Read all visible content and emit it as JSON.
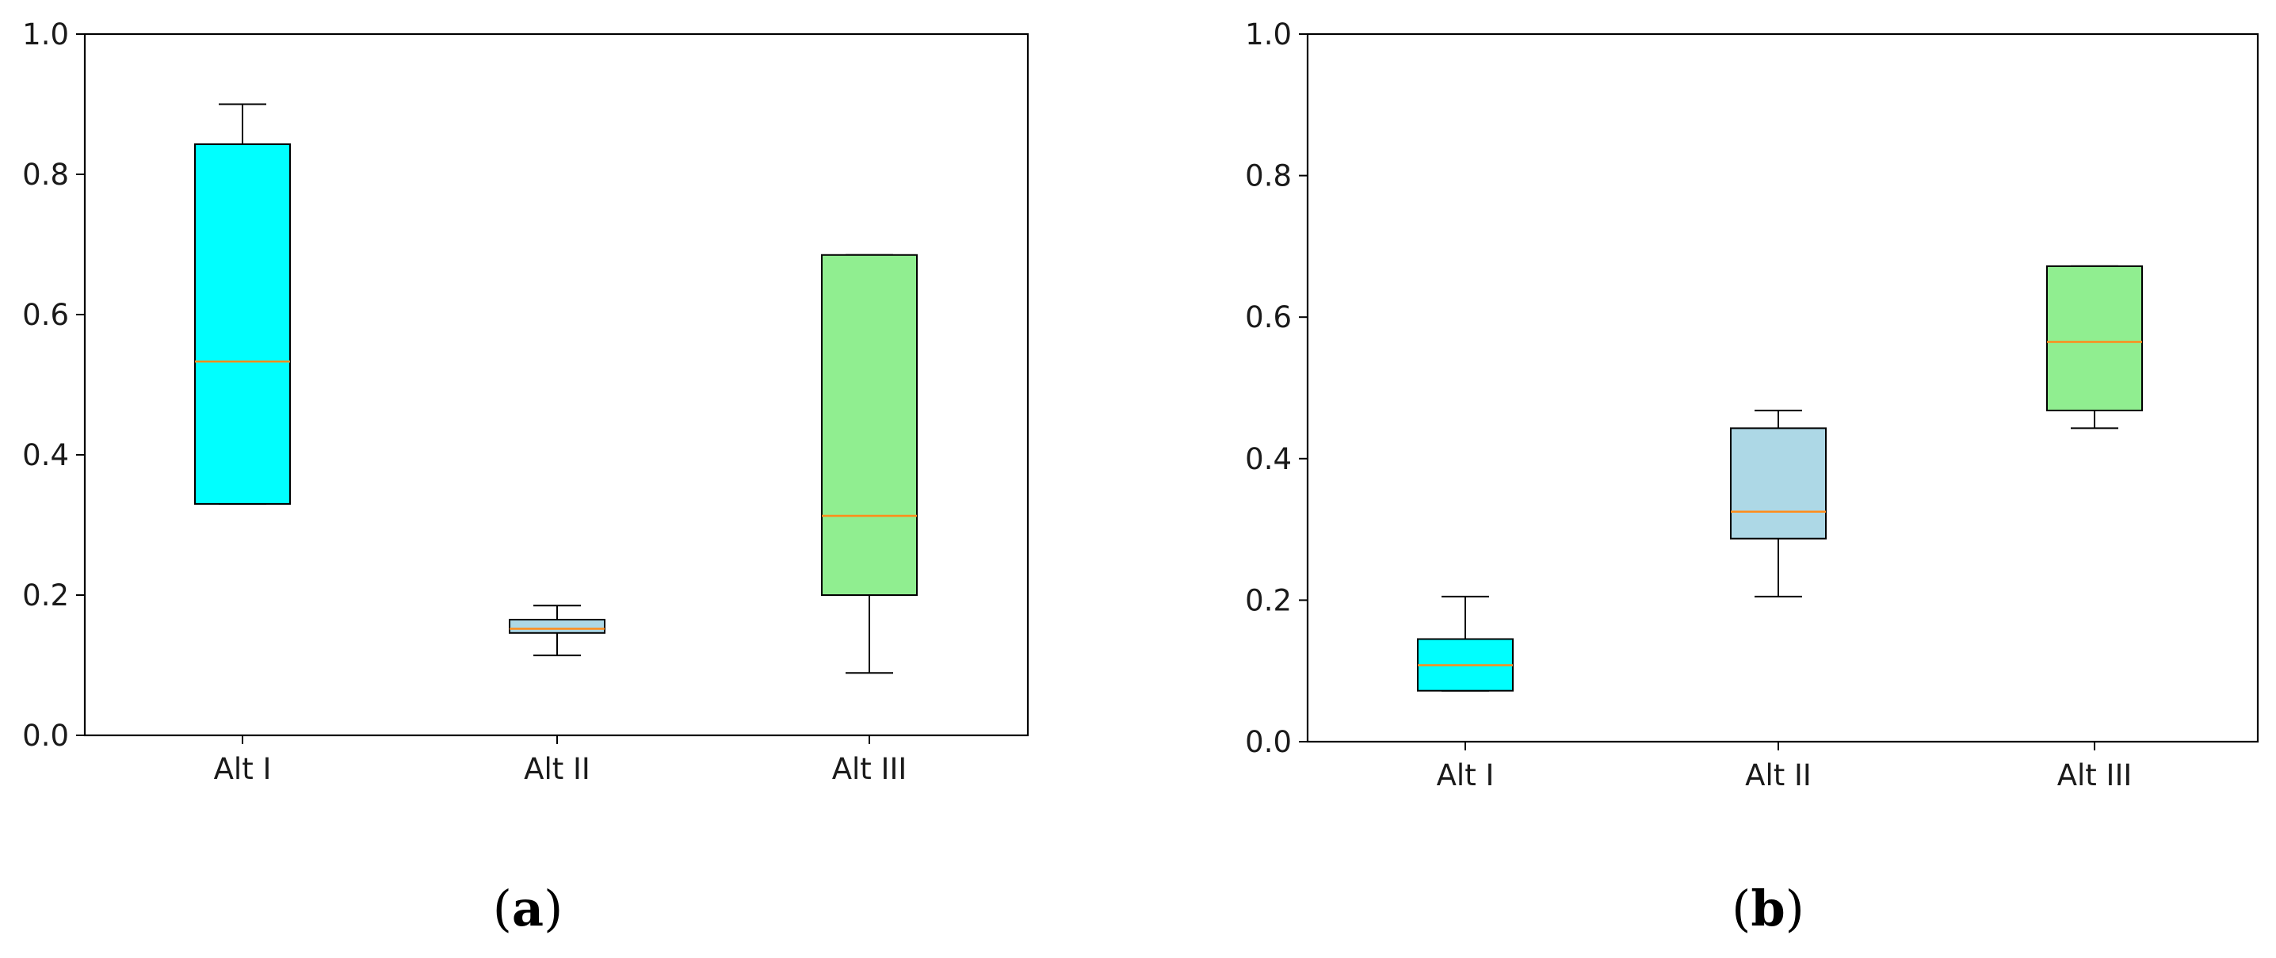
{
  "chart_data": [
    {
      "type": "box",
      "panel_label": {
        "open": "(",
        "letter": "a",
        "close": ")"
      },
      "categories": [
        "Alt I",
        "Alt II",
        "Alt III"
      ],
      "ylim": [
        0,
        1.0
      ],
      "yticks": [
        "0.0",
        "0.2",
        "0.4",
        "0.6",
        "0.8",
        "1.0"
      ],
      "yticks_values": [
        0,
        0.2,
        0.4,
        0.6,
        0.8,
        1.0
      ],
      "boxes": [
        {
          "whisker_low": 0.33,
          "q1": 0.33,
          "median": 0.533,
          "q3": 0.843,
          "whisker_high": 0.9,
          "color": "#00ffff"
        },
        {
          "whisker_low": 0.114,
          "q1": 0.146,
          "median": 0.152,
          "q3": 0.165,
          "whisker_high": 0.185,
          "color": "#add8e6"
        },
        {
          "whisker_low": 0.089,
          "q1": 0.2,
          "median": 0.313,
          "q3": 0.685,
          "whisker_high": 0.685,
          "color": "#90ee90"
        }
      ],
      "median_color": "#ff8c1a",
      "grid": false,
      "xlabel": "",
      "ylabel": ""
    },
    {
      "type": "box",
      "panel_label": {
        "open": "(",
        "letter": "b",
        "close": ")"
      },
      "categories": [
        "Alt I",
        "Alt II",
        "Alt III"
      ],
      "ylim": [
        0,
        1.0
      ],
      "yticks": [
        "0.0",
        "0.2",
        "0.4",
        "0.6",
        "0.8",
        "1.0"
      ],
      "yticks_values": [
        0,
        0.2,
        0.4,
        0.6,
        0.8,
        1.0
      ],
      "boxes": [
        {
          "whisker_low": 0.072,
          "q1": 0.072,
          "median": 0.108,
          "q3": 0.145,
          "whisker_high": 0.205,
          "color": "#00ffff"
        },
        {
          "whisker_low": 0.205,
          "q1": 0.287,
          "median": 0.325,
          "q3": 0.443,
          "whisker_high": 0.468,
          "color": "#add8e6"
        },
        {
          "whisker_low": 0.443,
          "q1": 0.468,
          "median": 0.565,
          "q3": 0.672,
          "whisker_high": 0.672,
          "color": "#90ee90"
        }
      ],
      "median_color": "#ff8c1a",
      "grid": false,
      "xlabel": "",
      "ylabel": ""
    }
  ]
}
